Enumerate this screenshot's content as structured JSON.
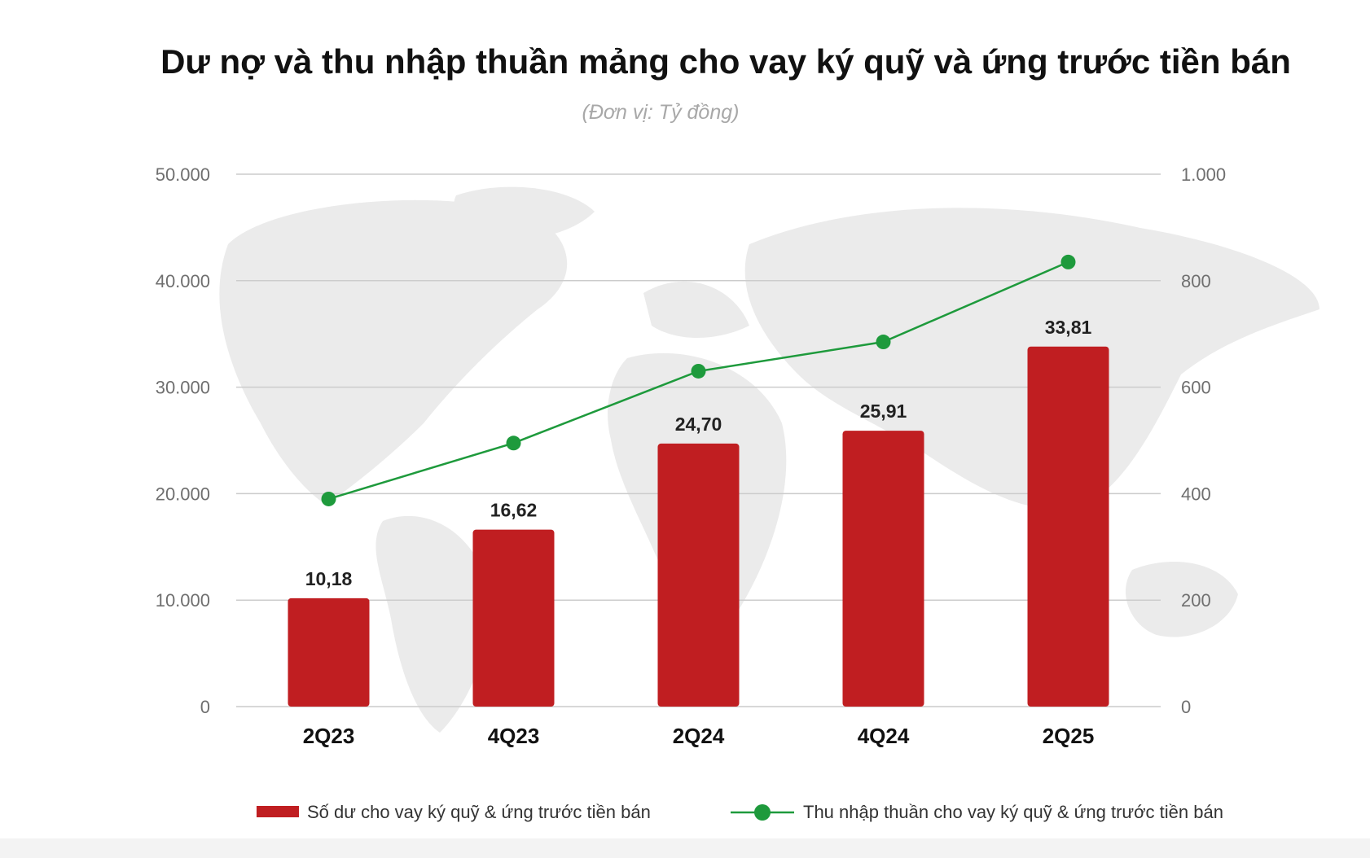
{
  "title": "Dư nợ và thu nhập thuần mảng cho vay ký quỹ và ứng trước tiền bán",
  "subtitle": "(Đơn vị: Tỷ đồng)",
  "colors": {
    "bar": "#c01e21",
    "line": "#1e9a3c",
    "grid": "#cccccc",
    "map": "#ebebeb"
  },
  "chart_data": {
    "type": "bar",
    "categories": [
      "2Q23",
      "4Q23",
      "2Q24",
      "4Q24",
      "2Q25"
    ],
    "series": [
      {
        "name": "Số dư cho vay ký quỹ & ứng trước tiền bán",
        "type": "bar",
        "axis": "left",
        "values": [
          10180,
          16620,
          24700,
          25910,
          33810
        ],
        "data_labels": [
          "10,18",
          "16,62",
          "24,70",
          "25,91",
          "33,81"
        ]
      },
      {
        "name": "Thu nhập thuần cho vay ký quỹ & ứng trước tiền bán",
        "type": "line",
        "axis": "right",
        "values": [
          390,
          495,
          630,
          685,
          835
        ]
      }
    ],
    "y_left": {
      "range": [
        0,
        50000
      ],
      "ticks": [
        0,
        10000,
        20000,
        30000,
        40000,
        50000
      ],
      "tick_labels": [
        "0",
        "10.000",
        "20.000",
        "30.000",
        "40.000",
        "50.000"
      ]
    },
    "y_right": {
      "range": [
        0,
        1000
      ],
      "ticks": [
        0,
        200,
        400,
        600,
        800,
        1000
      ],
      "tick_labels": [
        "0",
        "200",
        "400",
        "600",
        "800",
        "1.000"
      ]
    },
    "grid": true,
    "legend": "bottom"
  }
}
